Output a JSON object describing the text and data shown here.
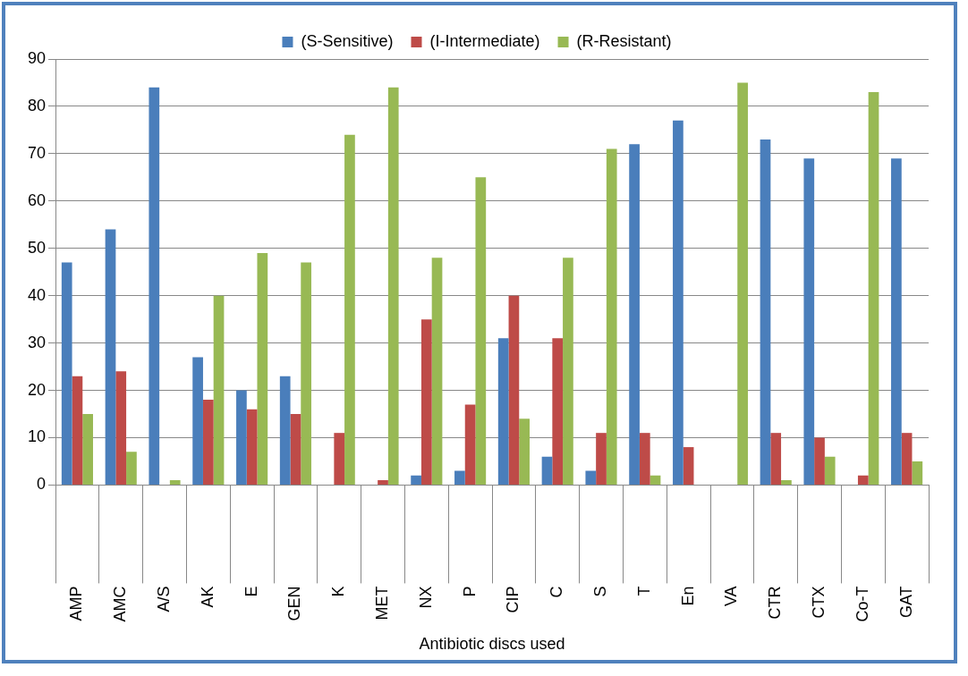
{
  "chart_data": {
    "type": "bar",
    "xlabel": "Antibiotic discs used",
    "categories": [
      "AMP",
      "AMC",
      "A/S",
      "AK",
      "E",
      "GEN",
      "K",
      "MET",
      "NX",
      "P",
      "CIP",
      "C",
      "S",
      "T",
      "En",
      "VA",
      "CTR",
      "CTX",
      "Co-T",
      "GAT"
    ],
    "series": [
      {
        "name": "(S-Sensitive)",
        "color": "#4a7ebb",
        "values": [
          47,
          54,
          84,
          27,
          20,
          23,
          0,
          0,
          2,
          3,
          31,
          6,
          3,
          72,
          77,
          0,
          73,
          69,
          0,
          69
        ]
      },
      {
        "name": "(I-Intermediate)",
        "color": "#be4b48",
        "values": [
          23,
          24,
          0,
          18,
          16,
          15,
          11,
          1,
          35,
          17,
          40,
          31,
          11,
          11,
          8,
          0,
          11,
          10,
          2,
          11
        ]
      },
      {
        "name": "(R-Resistant)",
        "color": "#98b954",
        "values": [
          15,
          7,
          1,
          40,
          49,
          47,
          74,
          84,
          48,
          65,
          14,
          48,
          71,
          2,
          0,
          85,
          1,
          6,
          83,
          5
        ]
      }
    ],
    "ylim": [
      0,
      90
    ],
    "yticks": [
      0,
      10,
      20,
      30,
      40,
      50,
      60,
      70,
      80,
      90
    ],
    "grid": "y",
    "legend": "top"
  }
}
